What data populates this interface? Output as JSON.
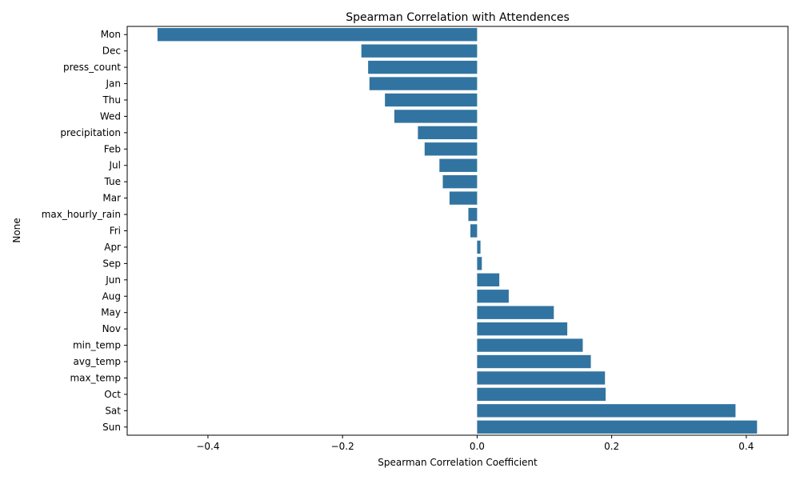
{
  "chart_data": {
    "type": "bar",
    "orientation": "horizontal",
    "title": "Spearman Correlation with Attendences",
    "xlabel": "Spearman Correlation Coefficient",
    "ylabel": "None",
    "xlim": [
      -0.52,
      0.462
    ],
    "xticks": [
      -0.4,
      -0.2,
      0.0,
      0.2,
      0.4
    ],
    "xtick_labels": [
      "−0.4",
      "−0.2",
      "0.0",
      "0.2",
      "0.4"
    ],
    "grid": false,
    "bar_color": "#3274a1",
    "categories": [
      "Mon",
      "Dec",
      "press_count",
      "Jan",
      "Thu",
      "Wed",
      "precipitation",
      "Feb",
      "Jul",
      "Tue",
      "Mar",
      "max_hourly_rain",
      "Fri",
      "Apr",
      "Sep",
      "Jun",
      "Aug",
      "May",
      "Nov",
      "min_temp",
      "avg_temp",
      "max_temp",
      "Oct",
      "Sat",
      "Sun"
    ],
    "values": [
      -0.475,
      -0.172,
      -0.162,
      -0.16,
      -0.137,
      -0.123,
      -0.088,
      -0.078,
      -0.056,
      -0.051,
      -0.041,
      -0.013,
      -0.01,
      0.005,
      0.007,
      0.033,
      0.047,
      0.114,
      0.134,
      0.157,
      0.169,
      0.19,
      0.191,
      0.384,
      0.416
    ]
  }
}
